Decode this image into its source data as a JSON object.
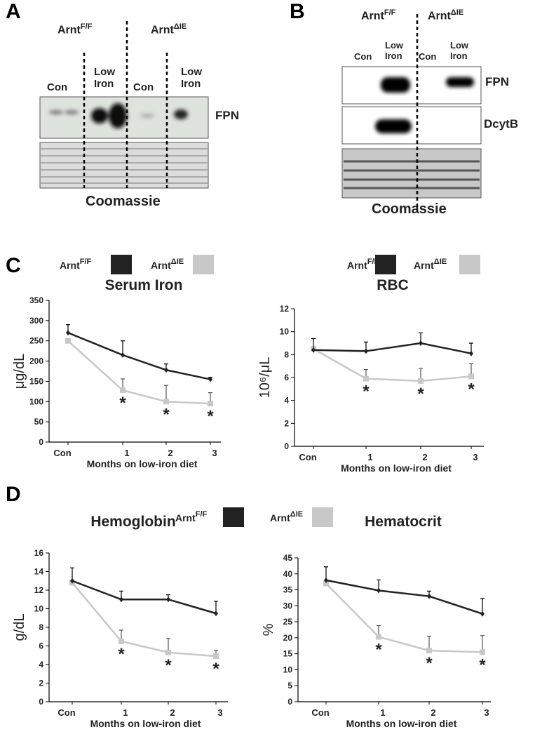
{
  "blots": [
    {
      "label": "A",
      "groups": [
        {
          "name": "Arnt",
          "sup": "F/F"
        },
        {
          "name": "Arnt",
          "sup": "ΔIE"
        }
      ],
      "lanes": [
        "Con",
        "Low Iron",
        "Con",
        "Low Iron"
      ],
      "rows": [
        "FPN"
      ],
      "stain": "Coomassie"
    },
    {
      "label": "B",
      "groups": [
        {
          "name": "Arnt",
          "sup": "F/F"
        },
        {
          "name": "Arnt",
          "sup": "ΔIE"
        }
      ],
      "lanes": [
        "Con",
        "Low Iron",
        "Con",
        "Low Iron"
      ],
      "rows": [
        "FPN",
        "DcytB"
      ],
      "stain": "Coomassie"
    }
  ],
  "chart_panels": [
    "C",
    "D"
  ],
  "chart_data": [
    {
      "type": "line",
      "title": "Serum Iron",
      "xlabel": "Months on low-iron diet",
      "ylabel": "μg/dL",
      "categories": [
        "Con",
        "1",
        "2",
        "3"
      ],
      "ylim": [
        0,
        350
      ],
      "yticks": [
        0,
        50,
        100,
        150,
        200,
        250,
        300,
        350
      ],
      "series": [
        {
          "name": "Arnt",
          "name_sup": "F/F",
          "color": "#222222",
          "values": [
            270,
            215,
            178,
            155
          ],
          "errors": [
            20,
            35,
            15,
            5
          ]
        },
        {
          "name": "Arnt",
          "name_sup": "ΔIE",
          "color": "#c8c8c8",
          "values": [
            250,
            128,
            100,
            95
          ],
          "errors": [
            0,
            28,
            40,
            27
          ]
        }
      ],
      "significance": [
        null,
        "*",
        "*",
        "*"
      ]
    },
    {
      "type": "line",
      "title": "RBC",
      "xlabel": "Months on low-iron diet",
      "ylabel": "10⁶/μL",
      "categories": [
        "Con",
        "1",
        "2",
        "3"
      ],
      "ylim": [
        0,
        12
      ],
      "yticks": [
        0,
        2,
        4,
        6,
        8,
        10,
        12
      ],
      "series": [
        {
          "name": "Arnt",
          "name_sup": "F/F",
          "color": "#222222",
          "values": [
            8.4,
            8.3,
            9.0,
            8.1
          ],
          "errors": [
            1.0,
            0.8,
            0.9,
            0.9
          ]
        },
        {
          "name": "Arnt",
          "name_sup": "ΔIE",
          "color": "#c8c8c8",
          "values": [
            8.5,
            5.9,
            5.7,
            6.1
          ],
          "errors": [
            0,
            0.8,
            1.1,
            1.1
          ]
        }
      ],
      "significance": [
        null,
        "*",
        "*",
        "*"
      ]
    },
    {
      "type": "line",
      "title": "Hemoglobin",
      "xlabel": "Months on low-iron diet",
      "ylabel": "g/dL",
      "categories": [
        "Con",
        "1",
        "2",
        "3"
      ],
      "ylim": [
        0,
        16
      ],
      "yticks": [
        0,
        2,
        4,
        6,
        8,
        10,
        12,
        14,
        16
      ],
      "series": [
        {
          "name": "Arnt",
          "name_sup": "F/F",
          "color": "#222222",
          "values": [
            13,
            11,
            11,
            9.5
          ],
          "errors": [
            1.4,
            0.9,
            0.5,
            1.3
          ]
        },
        {
          "name": "Arnt",
          "name_sup": "ΔIE",
          "color": "#c8c8c8",
          "values": [
            12.8,
            6.5,
            5.3,
            4.9
          ],
          "errors": [
            0,
            1.2,
            1.5,
            0.6
          ]
        }
      ],
      "significance": [
        null,
        "*",
        "*",
        "*"
      ]
    },
    {
      "type": "line",
      "title": "Hematocrit",
      "xlabel": "Months on low-iron diet",
      "ylabel": "%",
      "categories": [
        "Con",
        "1",
        "2",
        "3"
      ],
      "ylim": [
        0,
        45
      ],
      "yticks": [
        0,
        5,
        10,
        15,
        20,
        25,
        30,
        35,
        40,
        45
      ],
      "series": [
        {
          "color": "#222222",
          "values": [
            38,
            34.8,
            33,
            27.5
          ],
          "errors": [
            4.2,
            3.3,
            1.6,
            4.8
          ]
        },
        {
          "color": "#c8c8c8",
          "values": [
            37,
            20.3,
            16,
            15.5
          ],
          "errors": [
            0,
            3.5,
            4.5,
            5.2
          ]
        }
      ],
      "significance": [
        null,
        "*",
        "*",
        "*"
      ]
    }
  ]
}
